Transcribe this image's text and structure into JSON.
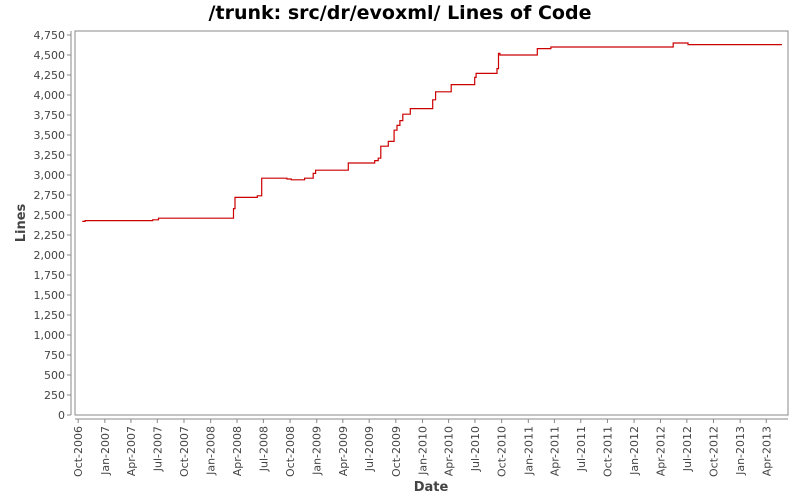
{
  "chart_data": {
    "type": "line",
    "title": "/trunk: src/dr/evoxml/ Lines of Code",
    "xlabel": "Date",
    "ylabel": "Lines",
    "ylim": [
      0,
      4800
    ],
    "xlim": [
      "2006-09-20",
      "2013-06-15"
    ],
    "y_ticks": [
      0,
      250,
      500,
      750,
      1000,
      1250,
      1500,
      1750,
      2000,
      2250,
      2500,
      2750,
      3000,
      3250,
      3500,
      3750,
      4000,
      4250,
      4500,
      4750
    ],
    "y_tick_labels": [
      "0",
      "250",
      "500",
      "750",
      "1,000",
      "1,250",
      "1,500",
      "1,750",
      "2,000",
      "2,250",
      "2,500",
      "2,750",
      "3,000",
      "3,250",
      "3,500",
      "3,750",
      "4,000",
      "4,250",
      "4,500",
      "4,750"
    ],
    "x_ticks": [
      {
        "date": "2006-10-01",
        "label": "Oct-2006"
      },
      {
        "date": "2007-01-01",
        "label": "Jan-2007"
      },
      {
        "date": "2007-04-01",
        "label": "Apr-2007"
      },
      {
        "date": "2007-07-01",
        "label": "Jul-2007"
      },
      {
        "date": "2007-10-01",
        "label": "Oct-2007"
      },
      {
        "date": "2008-01-01",
        "label": "Jan-2008"
      },
      {
        "date": "2008-04-01",
        "label": "Apr-2008"
      },
      {
        "date": "2008-07-01",
        "label": "Jul-2008"
      },
      {
        "date": "2008-10-01",
        "label": "Oct-2008"
      },
      {
        "date": "2009-01-01",
        "label": "Jan-2009"
      },
      {
        "date": "2009-04-01",
        "label": "Apr-2009"
      },
      {
        "date": "2009-07-01",
        "label": "Jul-2009"
      },
      {
        "date": "2009-10-01",
        "label": "Oct-2009"
      },
      {
        "date": "2010-01-01",
        "label": "Jan-2010"
      },
      {
        "date": "2010-04-01",
        "label": "Apr-2010"
      },
      {
        "date": "2010-07-01",
        "label": "Jul-2010"
      },
      {
        "date": "2010-10-01",
        "label": "Oct-2010"
      },
      {
        "date": "2011-01-01",
        "label": "Jan-2011"
      },
      {
        "date": "2011-04-01",
        "label": "Apr-2011"
      },
      {
        "date": "2011-07-01",
        "label": "Jul-2011"
      },
      {
        "date": "2011-10-01",
        "label": "Oct-2011"
      },
      {
        "date": "2012-01-01",
        "label": "Jan-2012"
      },
      {
        "date": "2012-04-01",
        "label": "Apr-2012"
      },
      {
        "date": "2012-07-01",
        "label": "Jul-2012"
      },
      {
        "date": "2012-10-01",
        "label": "Oct-2012"
      },
      {
        "date": "2013-01-01",
        "label": "Jan-2013"
      },
      {
        "date": "2013-04-01",
        "label": "Apr-2013"
      }
    ],
    "grid": false,
    "legend": "none",
    "series": [
      {
        "color": "#cc0000",
        "step": true,
        "points": [
          {
            "x": "2006-10-15",
            "y": 2420
          },
          {
            "x": "2006-10-25",
            "y": 2430
          },
          {
            "x": "2007-06-15",
            "y": 2440
          },
          {
            "x": "2007-07-05",
            "y": 2460
          },
          {
            "x": "2008-03-20",
            "y": 2580
          },
          {
            "x": "2008-03-25",
            "y": 2720
          },
          {
            "x": "2008-06-10",
            "y": 2740
          },
          {
            "x": "2008-06-25",
            "y": 2960
          },
          {
            "x": "2008-09-20",
            "y": 2950
          },
          {
            "x": "2008-10-05",
            "y": 2940
          },
          {
            "x": "2008-11-20",
            "y": 2960
          },
          {
            "x": "2008-12-20",
            "y": 3020
          },
          {
            "x": "2008-12-28",
            "y": 3060
          },
          {
            "x": "2009-04-20",
            "y": 3150
          },
          {
            "x": "2009-07-20",
            "y": 3180
          },
          {
            "x": "2009-08-01",
            "y": 3210
          },
          {
            "x": "2009-08-10",
            "y": 3360
          },
          {
            "x": "2009-09-05",
            "y": 3420
          },
          {
            "x": "2009-09-25",
            "y": 3560
          },
          {
            "x": "2009-10-05",
            "y": 3620
          },
          {
            "x": "2009-10-15",
            "y": 3680
          },
          {
            "x": "2009-10-25",
            "y": 3760
          },
          {
            "x": "2009-11-20",
            "y": 3830
          },
          {
            "x": "2010-02-05",
            "y": 3940
          },
          {
            "x": "2010-02-15",
            "y": 4040
          },
          {
            "x": "2010-04-10",
            "y": 4130
          },
          {
            "x": "2010-06-30",
            "y": 4220
          },
          {
            "x": "2010-07-05",
            "y": 4270
          },
          {
            "x": "2010-09-15",
            "y": 4330
          },
          {
            "x": "2010-09-20",
            "y": 4520
          },
          {
            "x": "2010-09-25",
            "y": 4500
          },
          {
            "x": "2011-02-01",
            "y": 4580
          },
          {
            "x": "2011-03-20",
            "y": 4600
          },
          {
            "x": "2012-05-15",
            "y": 4650
          },
          {
            "x": "2012-07-05",
            "y": 4630
          },
          {
            "x": "2013-05-25",
            "y": 4630
          }
        ]
      }
    ]
  }
}
